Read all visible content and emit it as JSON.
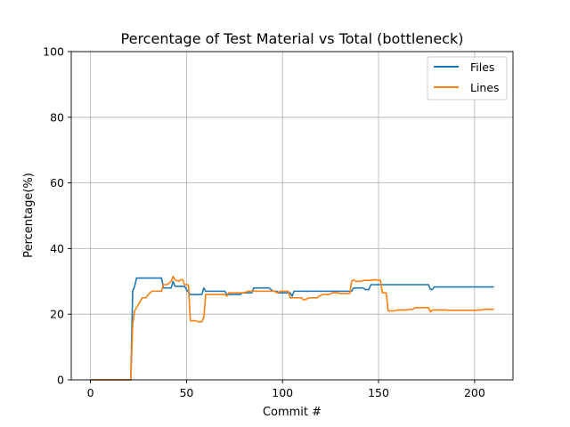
{
  "chart_data": {
    "type": "line",
    "title": "Percentage of Test Material vs Total (bottleneck)",
    "xlabel": "Commit #",
    "ylabel": "Percentage(%)",
    "xlim": [
      -10,
      220
    ],
    "ylim": [
      0,
      100
    ],
    "xticks": [
      0,
      50,
      100,
      150,
      200
    ],
    "yticks": [
      0,
      20,
      40,
      60,
      80,
      100
    ],
    "grid": true,
    "legend_position": "top-right",
    "series": [
      {
        "name": "Files",
        "color": "#1f77b4",
        "points": [
          [
            0,
            0
          ],
          [
            21,
            0
          ],
          [
            22,
            27
          ],
          [
            23,
            28.5
          ],
          [
            24,
            31
          ],
          [
            37,
            31
          ],
          [
            38,
            28
          ],
          [
            42,
            28
          ],
          [
            43,
            30
          ],
          [
            44,
            28.5
          ],
          [
            49,
            28.5
          ],
          [
            50,
            27.5
          ],
          [
            52,
            26
          ],
          [
            58,
            26
          ],
          [
            59,
            28
          ],
          [
            60,
            27
          ],
          [
            70,
            27
          ],
          [
            71,
            26
          ],
          [
            78,
            26
          ],
          [
            79,
            26.5
          ],
          [
            84,
            26.5
          ],
          [
            85,
            28
          ],
          [
            93,
            28
          ],
          [
            95,
            27
          ],
          [
            97,
            27
          ],
          [
            98,
            26.5
          ],
          [
            104,
            26.5
          ],
          [
            105,
            25.5
          ],
          [
            106,
            27
          ],
          [
            136,
            27
          ],
          [
            137,
            28
          ],
          [
            142,
            28
          ],
          [
            143,
            27.5
          ],
          [
            145,
            27.5
          ],
          [
            146,
            29
          ],
          [
            176,
            29
          ],
          [
            177,
            27.5
          ],
          [
            178,
            27.5
          ],
          [
            179,
            28.3
          ],
          [
            210,
            28.3
          ]
        ]
      },
      {
        "name": "Lines",
        "color": "#ff7f0e",
        "points": [
          [
            0,
            0
          ],
          [
            21,
            0
          ],
          [
            22,
            17
          ],
          [
            23,
            21
          ],
          [
            25,
            23
          ],
          [
            26,
            24
          ],
          [
            27,
            25
          ],
          [
            29,
            25
          ],
          [
            30,
            26
          ],
          [
            31,
            26.5
          ],
          [
            32,
            27
          ],
          [
            37,
            27
          ],
          [
            38,
            29
          ],
          [
            40,
            29
          ],
          [
            42,
            30
          ],
          [
            43,
            31.5
          ],
          [
            44,
            30.5
          ],
          [
            46,
            30
          ],
          [
            47,
            30.5
          ],
          [
            48,
            30.5
          ],
          [
            49,
            29
          ],
          [
            51,
            29
          ],
          [
            52,
            18
          ],
          [
            55,
            18
          ],
          [
            56,
            17.7
          ],
          [
            58,
            17.7
          ],
          [
            59,
            19
          ],
          [
            60,
            26
          ],
          [
            70,
            26
          ],
          [
            71,
            25.5
          ],
          [
            72,
            26.5
          ],
          [
            80,
            26.5
          ],
          [
            82,
            27
          ],
          [
            96,
            27
          ],
          [
            97,
            26.5
          ],
          [
            99,
            27
          ],
          [
            103,
            27
          ],
          [
            104,
            25
          ],
          [
            110,
            25
          ],
          [
            111,
            24.3
          ],
          [
            112,
            24.5
          ],
          [
            114,
            25
          ],
          [
            118,
            25
          ],
          [
            119,
            25.5
          ],
          [
            121,
            26
          ],
          [
            124,
            26
          ],
          [
            126,
            26.5
          ],
          [
            129,
            26.5
          ],
          [
            130,
            26.3
          ],
          [
            135,
            26.3
          ],
          [
            136,
            30
          ],
          [
            137,
            30.5
          ],
          [
            138,
            30
          ],
          [
            141,
            30
          ],
          [
            142,
            30.3
          ],
          [
            146,
            30.3
          ],
          [
            148,
            30.5
          ],
          [
            151,
            30.3
          ],
          [
            152,
            26.5
          ],
          [
            154,
            26.5
          ],
          [
            155,
            21
          ],
          [
            158,
            21
          ],
          [
            160,
            21.3
          ],
          [
            165,
            21.3
          ],
          [
            166,
            21.5
          ],
          [
            168,
            21.5
          ],
          [
            169,
            22
          ],
          [
            176,
            22
          ],
          [
            177,
            20.7
          ],
          [
            178,
            21.3
          ],
          [
            185,
            21.3
          ],
          [
            186,
            21.2
          ],
          [
            200,
            21.2
          ],
          [
            204,
            21.3
          ],
          [
            205,
            21.5
          ],
          [
            210,
            21.5
          ]
        ]
      }
    ]
  }
}
